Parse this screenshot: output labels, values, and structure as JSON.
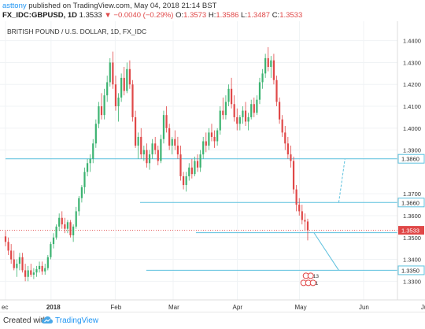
{
  "header": {
    "publisher": "asttony",
    "published_text": "published on TradingView.com, May 04, 2018 21:14 BST",
    "symbol": "FX_IDC:GBPUSD, 1D",
    "last": "1.3533",
    "change_arrow": "▼",
    "change": "−0.0040 (−0.29%)",
    "o_label": "O:",
    "o": "1.3573",
    "h_label": "H:",
    "h": "1.3586",
    "l_label": "L:",
    "l": "1.3487",
    "c_label": "C:",
    "c": "1.3533"
  },
  "footer": {
    "created_with": "Created with",
    "brand": "TradingView"
  },
  "colors": {
    "up": "#3cb371",
    "down": "#e04848",
    "level_line": "#5bc0de",
    "price_line": "#e04848",
    "label_bg": "#ffffff",
    "label_border": "#5bc0de"
  },
  "chart_data": {
    "type": "candlestick",
    "title": "BRITISH POUND / U.S. DOLLAR, 1D, FX_IDC",
    "ylim": [
      1.324,
      1.446
    ],
    "yticks": [
      "1.4400",
      "1.4300",
      "1.4200",
      "1.4100",
      "1.4000",
      "1.3900",
      "1.3700",
      "1.3600",
      "1.3500",
      "1.3400",
      "1.3300"
    ],
    "xticks": [
      "ec",
      "2018",
      "Feb",
      "Mar",
      "Apr",
      "May",
      "Jun",
      "Jul"
    ],
    "x_tick_days": [
      0,
      22,
      53,
      81,
      112,
      142,
      173,
      203
    ],
    "last_day": 146,
    "price_label": "1.3533",
    "level_labels": [
      {
        "value": "1.3860",
        "y": 1.386
      },
      {
        "value": "1.3660",
        "y": 1.366
      },
      {
        "value": "1.3350",
        "y": 1.335
      }
    ],
    "levels": [
      {
        "y": 1.386,
        "from_day": 0
      },
      {
        "y": 1.366,
        "from_day": 65
      },
      {
        "y": 1.3522,
        "from_day": 92
      },
      {
        "y": 1.335,
        "from_day": 68
      }
    ],
    "projections": [
      {
        "from": [
          149,
          1.3522
        ],
        "to": [
          161,
          1.335
        ],
        "style": "solid"
      },
      {
        "from": [
          161,
          1.366
        ],
        "to": [
          164,
          1.386
        ],
        "style": "dashed"
      }
    ],
    "event_badges": [
      "2",
      "13",
      "6",
      "8",
      "1"
    ],
    "candles": [
      [
        1.3505,
        1.353,
        1.346,
        1.348
      ],
      [
        1.348,
        1.35,
        1.342,
        1.344
      ],
      [
        1.344,
        1.347,
        1.338,
        1.34
      ],
      [
        1.34,
        1.344,
        1.335,
        1.336
      ],
      [
        1.336,
        1.34,
        1.332,
        1.338
      ],
      [
        1.338,
        1.343,
        1.335,
        1.341
      ],
      [
        1.341,
        1.343,
        1.334,
        1.335
      ],
      [
        1.335,
        1.338,
        1.33,
        1.332
      ],
      [
        1.332,
        1.337,
        1.33,
        1.335
      ],
      [
        1.335,
        1.338,
        1.332,
        1.333
      ],
      [
        1.333,
        1.336,
        1.331,
        1.334
      ],
      [
        1.334,
        1.337,
        1.332,
        1.3355
      ],
      [
        1.3355,
        1.339,
        1.334,
        1.337
      ],
      [
        1.337,
        1.339,
        1.333,
        1.3345
      ],
      [
        1.3345,
        1.338,
        1.333,
        1.336
      ],
      [
        1.336,
        1.342,
        1.335,
        1.341
      ],
      [
        1.341,
        1.348,
        1.34,
        1.347
      ],
      [
        1.347,
        1.352,
        1.345,
        1.35
      ],
      [
        1.35,
        1.356,
        1.349,
        1.355
      ],
      [
        1.355,
        1.361,
        1.353,
        1.359
      ],
      [
        1.359,
        1.362,
        1.354,
        1.356
      ],
      [
        1.356,
        1.359,
        1.352,
        1.354
      ],
      [
        1.354,
        1.358,
        1.352,
        1.357
      ],
      [
        1.357,
        1.358,
        1.35,
        1.351
      ],
      [
        1.351,
        1.356,
        1.348,
        1.355
      ],
      [
        1.355,
        1.364,
        1.354,
        1.362
      ],
      [
        1.362,
        1.369,
        1.36,
        1.368
      ],
      [
        1.368,
        1.374,
        1.366,
        1.373
      ],
      [
        1.373,
        1.382,
        1.37,
        1.38
      ],
      [
        1.38,
        1.386,
        1.378,
        1.384
      ],
      [
        1.384,
        1.388,
        1.38,
        1.386
      ],
      [
        1.386,
        1.395,
        1.384,
        1.393
      ],
      [
        1.393,
        1.404,
        1.391,
        1.402
      ],
      [
        1.402,
        1.412,
        1.4,
        1.41
      ],
      [
        1.41,
        1.416,
        1.404,
        1.406
      ],
      [
        1.406,
        1.418,
        1.404,
        1.415
      ],
      [
        1.415,
        1.424,
        1.412,
        1.421
      ],
      [
        1.421,
        1.432,
        1.419,
        1.43
      ],
      [
        1.43,
        1.435,
        1.418,
        1.42
      ],
      [
        1.42,
        1.424,
        1.408,
        1.41
      ],
      [
        1.41,
        1.416,
        1.403,
        1.414
      ],
      [
        1.414,
        1.425,
        1.412,
        1.423
      ],
      [
        1.423,
        1.428,
        1.415,
        1.417
      ],
      [
        1.417,
        1.43,
        1.416,
        1.427
      ],
      [
        1.427,
        1.431,
        1.418,
        1.42
      ],
      [
        1.42,
        1.422,
        1.403,
        1.405
      ],
      [
        1.405,
        1.408,
        1.391,
        1.392
      ],
      [
        1.392,
        1.398,
        1.386,
        1.396
      ],
      [
        1.396,
        1.4,
        1.386,
        1.388
      ],
      [
        1.388,
        1.392,
        1.385,
        1.39
      ],
      [
        1.39,
        1.393,
        1.382,
        1.384
      ],
      [
        1.384,
        1.39,
        1.381,
        1.388
      ],
      [
        1.388,
        1.395,
        1.386,
        1.393
      ],
      [
        1.393,
        1.396,
        1.388,
        1.39
      ],
      [
        1.39,
        1.392,
        1.383,
        1.385
      ],
      [
        1.385,
        1.397,
        1.384,
        1.395
      ],
      [
        1.395,
        1.408,
        1.393,
        1.406
      ],
      [
        1.406,
        1.41,
        1.398,
        1.4
      ],
      [
        1.4,
        1.402,
        1.39,
        1.392
      ],
      [
        1.392,
        1.396,
        1.388,
        1.395
      ],
      [
        1.395,
        1.399,
        1.39,
        1.392
      ],
      [
        1.392,
        1.396,
        1.386,
        1.388
      ],
      [
        1.388,
        1.392,
        1.376,
        1.378
      ],
      [
        1.378,
        1.38,
        1.372,
        1.374
      ],
      [
        1.374,
        1.38,
        1.371,
        1.378
      ],
      [
        1.378,
        1.384,
        1.376,
        1.382
      ],
      [
        1.382,
        1.386,
        1.377,
        1.379
      ],
      [
        1.379,
        1.387,
        1.378,
        1.385
      ],
      [
        1.385,
        1.388,
        1.38,
        1.382
      ],
      [
        1.382,
        1.39,
        1.38,
        1.388
      ],
      [
        1.388,
        1.396,
        1.386,
        1.394
      ],
      [
        1.394,
        1.398,
        1.389,
        1.392
      ],
      [
        1.392,
        1.4,
        1.39,
        1.398
      ],
      [
        1.398,
        1.402,
        1.394,
        1.396
      ],
      [
        1.396,
        1.399,
        1.391,
        1.394
      ],
      [
        1.394,
        1.4,
        1.392,
        1.399
      ],
      [
        1.399,
        1.41,
        1.397,
        1.408
      ],
      [
        1.408,
        1.414,
        1.404,
        1.406
      ],
      [
        1.406,
        1.415,
        1.404,
        1.412
      ],
      [
        1.412,
        1.42,
        1.41,
        1.418
      ],
      [
        1.418,
        1.423,
        1.409,
        1.411
      ],
      [
        1.411,
        1.415,
        1.403,
        1.405
      ],
      [
        1.405,
        1.409,
        1.399,
        1.402
      ],
      [
        1.402,
        1.406,
        1.399,
        1.405
      ],
      [
        1.405,
        1.41,
        1.402,
        1.408
      ],
      [
        1.408,
        1.412,
        1.401,
        1.403
      ],
      [
        1.403,
        1.407,
        1.399,
        1.405
      ],
      [
        1.405,
        1.413,
        1.404,
        1.411
      ],
      [
        1.411,
        1.414,
        1.405,
        1.407
      ],
      [
        1.407,
        1.415,
        1.406,
        1.413
      ],
      [
        1.413,
        1.423,
        1.411,
        1.421
      ],
      [
        1.421,
        1.427,
        1.418,
        1.425
      ],
      [
        1.425,
        1.434,
        1.423,
        1.432
      ],
      [
        1.432,
        1.437,
        1.426,
        1.428
      ],
      [
        1.428,
        1.433,
        1.423,
        1.431
      ],
      [
        1.431,
        1.434,
        1.42,
        1.422
      ],
      [
        1.422,
        1.424,
        1.41,
        1.412
      ],
      [
        1.412,
        1.414,
        1.402,
        1.404
      ],
      [
        1.404,
        1.406,
        1.396,
        1.398
      ],
      [
        1.398,
        1.401,
        1.39,
        1.393
      ],
      [
        1.393,
        1.396,
        1.386,
        1.388
      ],
      [
        1.388,
        1.392,
        1.382,
        1.385
      ],
      [
        1.385,
        1.387,
        1.37,
        1.372
      ],
      [
        1.372,
        1.374,
        1.362,
        1.365
      ],
      [
        1.365,
        1.368,
        1.36,
        1.362
      ],
      [
        1.362,
        1.365,
        1.356,
        1.358
      ],
      [
        1.358,
        1.361,
        1.353,
        1.3573
      ],
      [
        1.3573,
        1.3586,
        1.3487,
        1.3533
      ]
    ]
  }
}
